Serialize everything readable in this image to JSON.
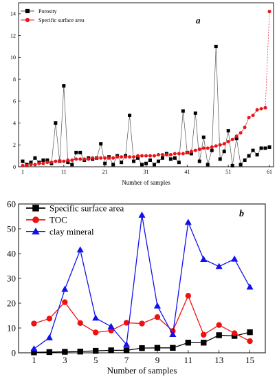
{
  "chart_data": [
    {
      "type": "line",
      "panel_label": "a",
      "xlabel": "Number of samples",
      "ylabel": "",
      "xlim": [
        0,
        62
      ],
      "ylim": [
        0,
        15
      ],
      "x_ticks": [
        1,
        11,
        21,
        31,
        41,
        51,
        61
      ],
      "y_ticks": [
        0,
        2,
        4,
        6,
        8,
        10,
        12,
        14
      ],
      "legend_position": "top-left",
      "grid": false,
      "x": [
        1,
        2,
        3,
        4,
        5,
        6,
        7,
        8,
        9,
        10,
        11,
        12,
        13,
        14,
        15,
        16,
        17,
        18,
        19,
        20,
        21,
        22,
        23,
        24,
        25,
        26,
        27,
        28,
        29,
        30,
        31,
        32,
        33,
        34,
        35,
        36,
        37,
        38,
        39,
        40,
        41,
        42,
        43,
        44,
        45,
        46,
        47,
        48,
        49,
        50,
        51,
        52,
        53,
        54,
        55,
        56,
        57,
        58,
        59,
        60,
        61
      ],
      "series": [
        {
          "name": "Porosity",
          "color": "#000000",
          "line_color": "#555555",
          "marker": "square",
          "values": [
            0.5,
            0.2,
            0.4,
            0.8,
            0.4,
            0.6,
            0.6,
            0.3,
            4.0,
            0.5,
            7.4,
            0.4,
            0.2,
            1.3,
            1.3,
            0.6,
            0.8,
            0.7,
            0.8,
            2.1,
            0.3,
            0.9,
            0.2,
            1.0,
            0.4,
            1.0,
            4.7,
            0.5,
            0.8,
            0.2,
            0.3,
            0.6,
            0.2,
            0.5,
            0.8,
            1.2,
            0.7,
            0.8,
            0.4,
            5.1,
            1.3,
            1.2,
            4.9,
            0.5,
            2.7,
            0.2,
            1.5,
            11.0,
            0.7,
            1.4,
            3.3,
            0.1,
            2.6,
            0.2,
            0.6,
            1.0,
            1.5,
            1.1,
            1.7,
            1.7,
            1.8
          ]
        },
        {
          "name": "Specific surface area",
          "color": "#e8141b",
          "line_color": "#e8141b",
          "marker": "circle",
          "values": [
            0.1,
            0.1,
            0.2,
            0.2,
            0.3,
            0.3,
            0.4,
            0.4,
            0.5,
            0.5,
            0.5,
            0.6,
            0.6,
            0.7,
            0.7,
            0.7,
            0.7,
            0.8,
            0.8,
            0.8,
            0.8,
            0.8,
            0.8,
            0.9,
            0.9,
            0.9,
            0.9,
            0.9,
            1.0,
            1.0,
            1.0,
            1.0,
            1.0,
            1.1,
            1.1,
            1.1,
            1.1,
            1.2,
            1.2,
            1.2,
            1.3,
            1.4,
            1.5,
            1.6,
            1.7,
            1.7,
            1.8,
            1.9,
            2.0,
            2.1,
            2.3,
            2.5,
            2.8,
            3.1,
            3.6,
            4.5,
            4.7,
            5.2,
            5.3,
            5.4,
            14.2
          ]
        }
      ]
    },
    {
      "type": "line",
      "panel_label": "b",
      "xlabel": "Number of samples",
      "ylabel": "",
      "xlim": [
        0,
        16
      ],
      "ylim": [
        0,
        60
      ],
      "x_ticks": [
        1,
        3,
        5,
        7,
        9,
        11,
        13,
        15
      ],
      "y_ticks": [
        0,
        10,
        20,
        30,
        40,
        50,
        60
      ],
      "legend_position": "top-left",
      "grid": false,
      "x": [
        1,
        2,
        3,
        4,
        5,
        6,
        7,
        8,
        9,
        10,
        11,
        12,
        13,
        14,
        15
      ],
      "series": [
        {
          "name": "Specific surface area",
          "color": "#000000",
          "marker": "square",
          "values": [
            0.2,
            0.3,
            0.4,
            0.5,
            0.8,
            1.0,
            1.0,
            1.9,
            2.0,
            2.0,
            4.1,
            4.1,
            7.1,
            6.8,
            8.3
          ]
        },
        {
          "name": "TOC",
          "color": "#ee1111",
          "marker": "circle",
          "values": [
            11.8,
            13.8,
            20.4,
            12.0,
            8.2,
            9.0,
            12.1,
            11.8,
            14.4,
            8.8,
            23.0,
            7.3,
            11.2,
            7.9,
            4.7
          ]
        },
        {
          "name": "clay mineral",
          "color": "#1111ee",
          "marker": "triangle",
          "values": [
            1.6,
            6.1,
            25.6,
            41.5,
            14.0,
            10.6,
            3.3,
            55.5,
            18.9,
            7.4,
            52.6,
            37.7,
            34.8,
            37.8,
            26.5
          ]
        }
      ]
    }
  ]
}
